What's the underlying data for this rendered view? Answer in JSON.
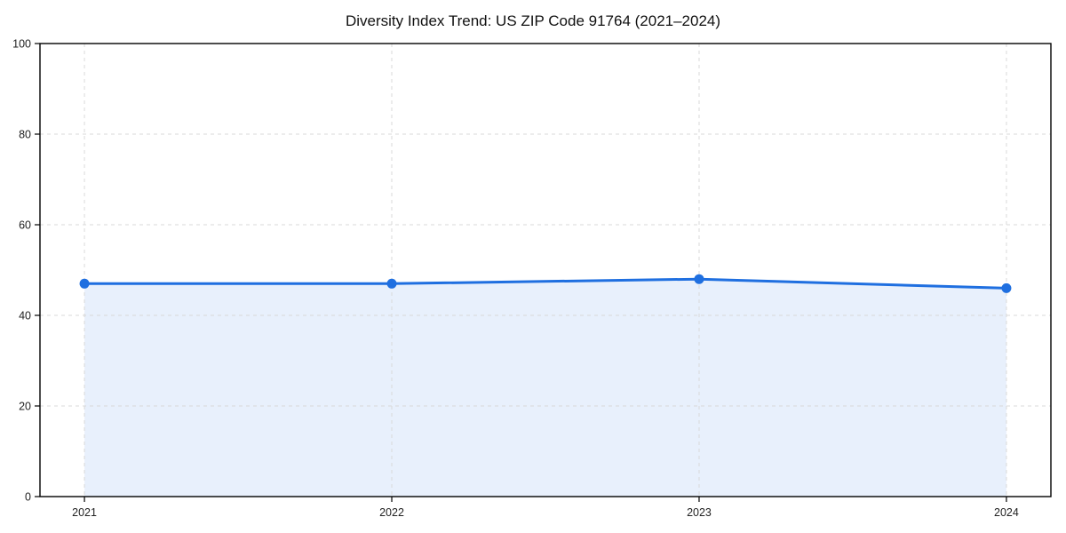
{
  "chart_data": {
    "type": "line",
    "title": "Diversity Index Trend: US ZIP Code 91764 (2021–2024)",
    "categories": [
      "2021",
      "2022",
      "2023",
      "2024"
    ],
    "series": [
      {
        "name": "Diversity Index",
        "values": [
          47,
          47,
          48,
          46
        ]
      }
    ],
    "xlabel": "",
    "ylabel": "",
    "ylim": [
      0,
      100
    ],
    "yticks": [
      0,
      20,
      40,
      60,
      80,
      100
    ],
    "grid": "dashed",
    "legend_position": "none",
    "line_color": "#1f6fe0",
    "marker_color": "#1f6fe0",
    "fill_color": "rgba(31,111,224,0.10)",
    "grid_color": "#d9d9d9",
    "axis_color": "#000000",
    "tick_label_color": "#222222"
  }
}
